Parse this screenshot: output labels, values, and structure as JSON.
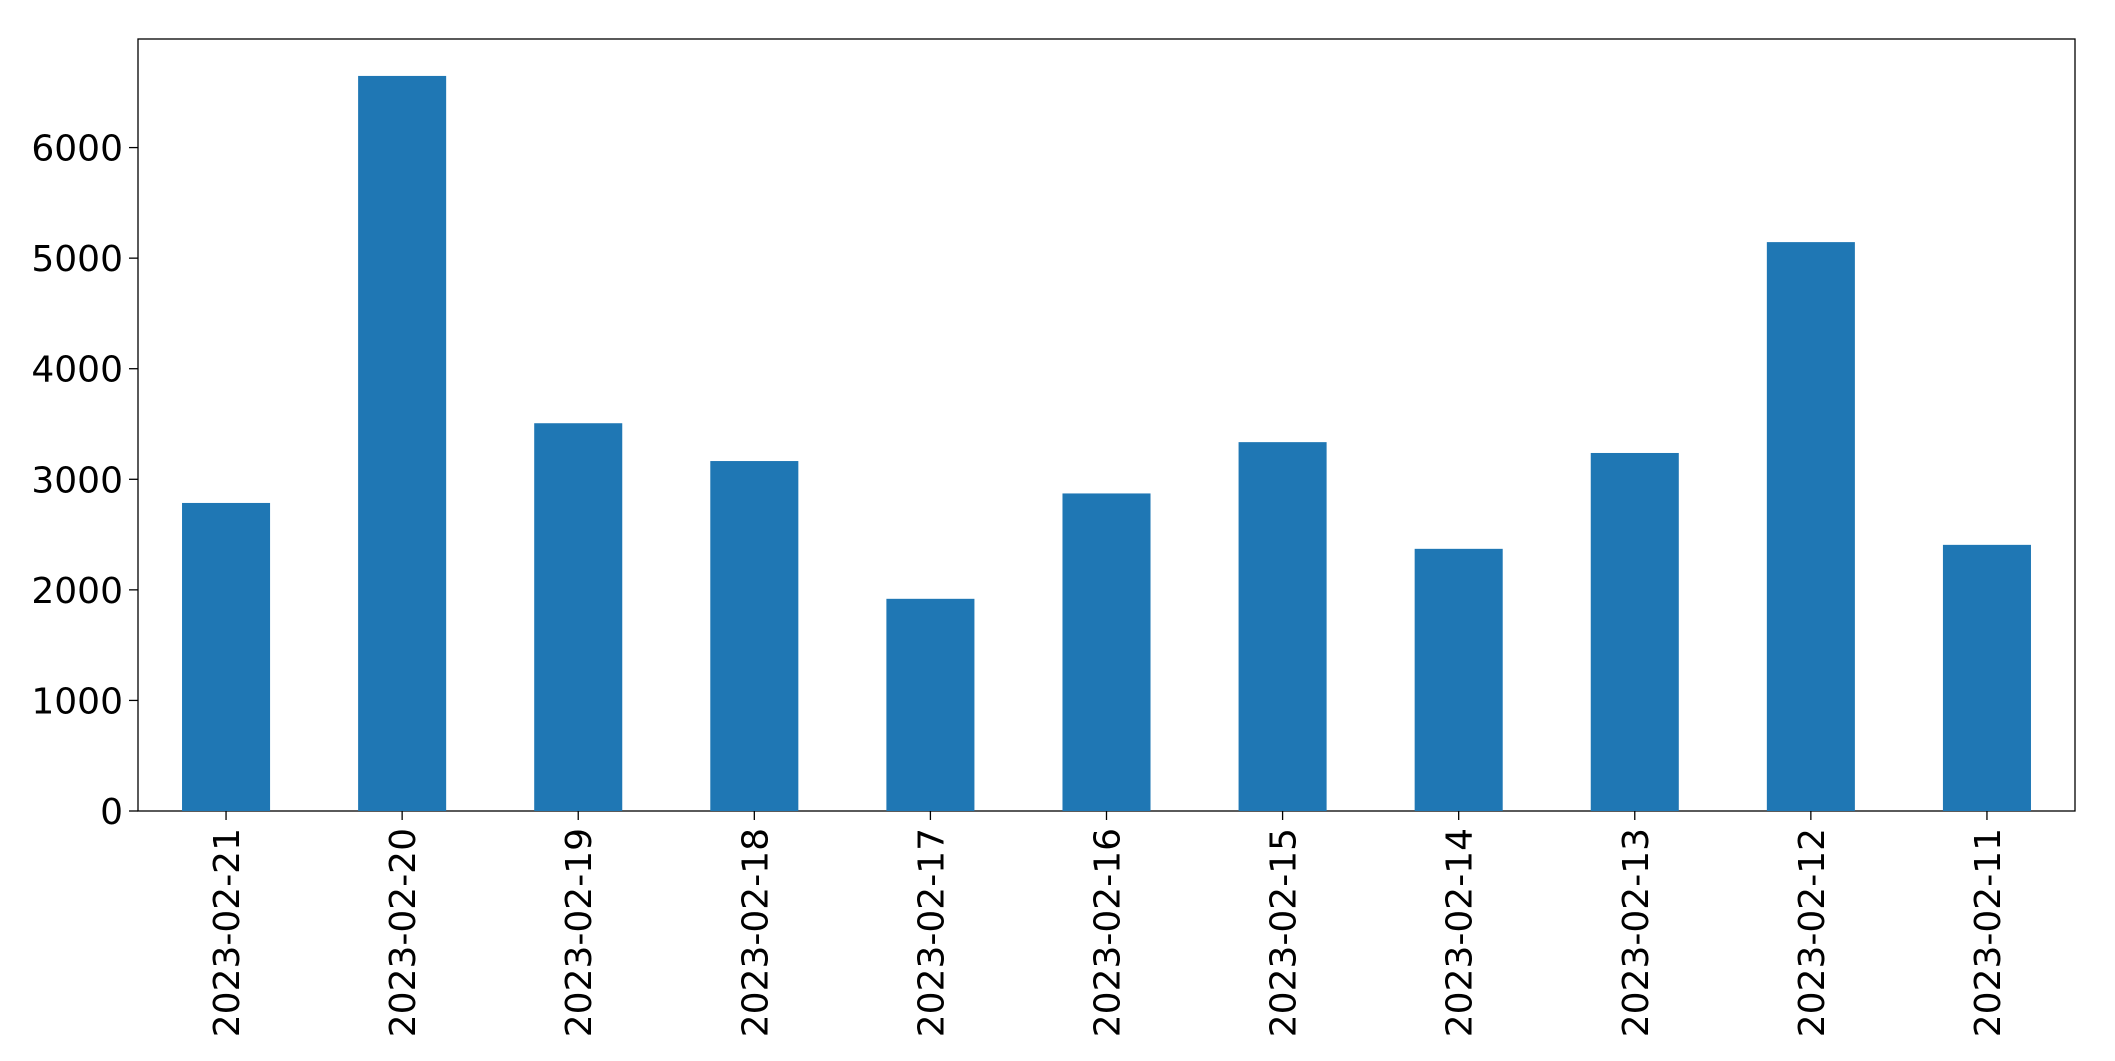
{
  "chart_data": {
    "type": "bar",
    "categories": [
      "2023-02-21",
      "2023-02-20",
      "2023-02-19",
      "2023-02-18",
      "2023-02-17",
      "2023-02-16",
      "2023-02-15",
      "2023-02-14",
      "2023-02-13",
      "2023-02-12",
      "2023-02-11"
    ],
    "values": [
      2786,
      6648,
      3507,
      3165,
      1919,
      2872,
      3336,
      2371,
      3238,
      5145,
      2407
    ],
    "color": "#1f77b4",
    "ylim": [
      0,
      6982
    ],
    "yticks": [
      0,
      1000,
      2000,
      3000,
      4000,
      5000,
      6000
    ],
    "grid": false
  }
}
